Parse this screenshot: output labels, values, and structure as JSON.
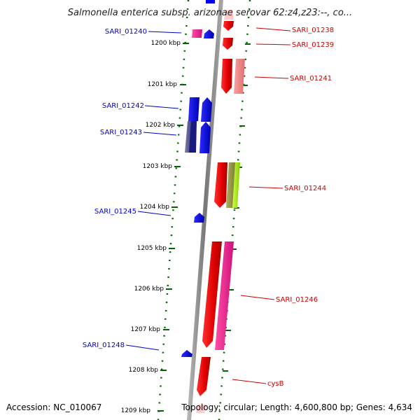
{
  "title": "Salmonella enterica subsp. arizonae serovar 62:z4,z23:--, co...",
  "footer": {
    "accession": "Accession: NC_010067",
    "summary": "Topology: circular; Length: 4,600,800 bp; Genes: 4,634"
  },
  "ticks": [
    "1200 kbp",
    "1201 kbp",
    "1202 kbp",
    "1203 kbp",
    "1204 kbp",
    "1205 kbp",
    "1206 kbp",
    "1207 kbp",
    "1208 kbp",
    "1209 kbp"
  ],
  "genes": [
    {
      "label": "SARI_01238",
      "strand": "forward"
    },
    {
      "label": "SARI_01239",
      "strand": "forward"
    },
    {
      "label": "SARI_01240",
      "strand": "reverse"
    },
    {
      "label": "SARI_01241",
      "strand": "forward"
    },
    {
      "label": "SARI_01242",
      "strand": "reverse"
    },
    {
      "label": "SARI_01243",
      "strand": "reverse"
    },
    {
      "label": "SARI_01244",
      "strand": "forward"
    },
    {
      "label": "SARI_01245",
      "strand": "reverse"
    },
    {
      "label": "SARI_01246",
      "strand": "forward"
    },
    {
      "label": "SARI_01248",
      "strand": "reverse"
    },
    {
      "label": "cysB",
      "strand": "forward"
    }
  ],
  "colors": {
    "forward_label": "#cc0000",
    "reverse_label": "#0000cc",
    "forward_gene": "#ff0000",
    "reverse_gene": "#0000ff",
    "backbone": "#888888",
    "tick": "#006600"
  }
}
